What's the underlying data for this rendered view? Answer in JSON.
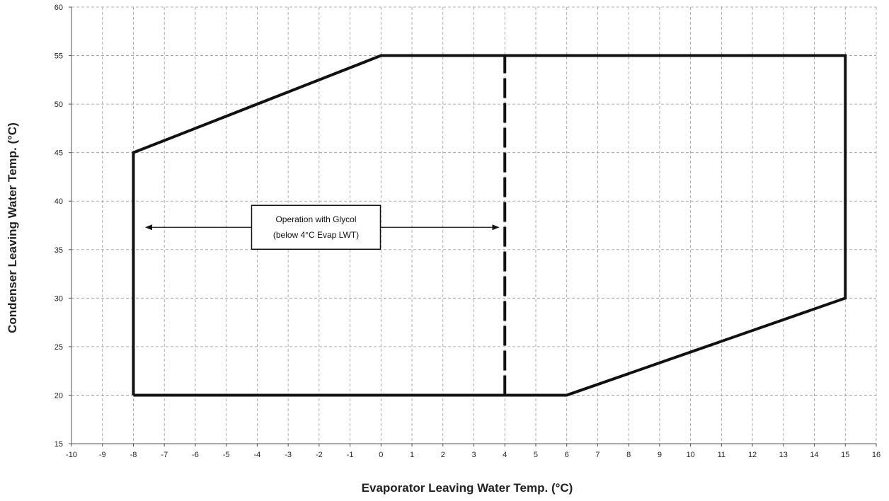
{
  "chart_data": {
    "type": "line",
    "title": "",
    "xlabel": "Evaporator Leaving  Water Temp.  (°C)",
    "ylabel": "Condenser Leaving Water Temp. (°C)",
    "xlim": [
      -10,
      16
    ],
    "ylim": [
      15,
      60
    ],
    "xticks": [
      "-10",
      "-9",
      "-8",
      "-7",
      "-6",
      "-5",
      "-4",
      "-3",
      "-2",
      "-1",
      "0",
      "1",
      "2",
      "3",
      "4",
      "5",
      "6",
      "7",
      "8",
      "9",
      "10",
      "11",
      "12",
      "13",
      "14",
      "15",
      "16"
    ],
    "yticks": [
      "15",
      "20",
      "25",
      "30",
      "35",
      "40",
      "45",
      "50",
      "55",
      "60"
    ],
    "grid": true,
    "legend": "none",
    "envelope": {
      "x": [
        -8,
        -8,
        0,
        15,
        15,
        6,
        -8
      ],
      "y": [
        20,
        45,
        55,
        55,
        30,
        20,
        20
      ]
    },
    "glycol_limit": {
      "x": 4,
      "y_range": [
        20,
        55
      ]
    },
    "annotation": {
      "lines": [
        "Operation with Glycol",
        "(below 4°C Evap LWT)"
      ],
      "arrow_x": [
        -7.6,
        3.8
      ],
      "arrow_y": 37.3,
      "box_center": [
        -2.1,
        37.3
      ]
    },
    "colors": {
      "line": "#111111",
      "grid": "#9a9a9a"
    }
  }
}
